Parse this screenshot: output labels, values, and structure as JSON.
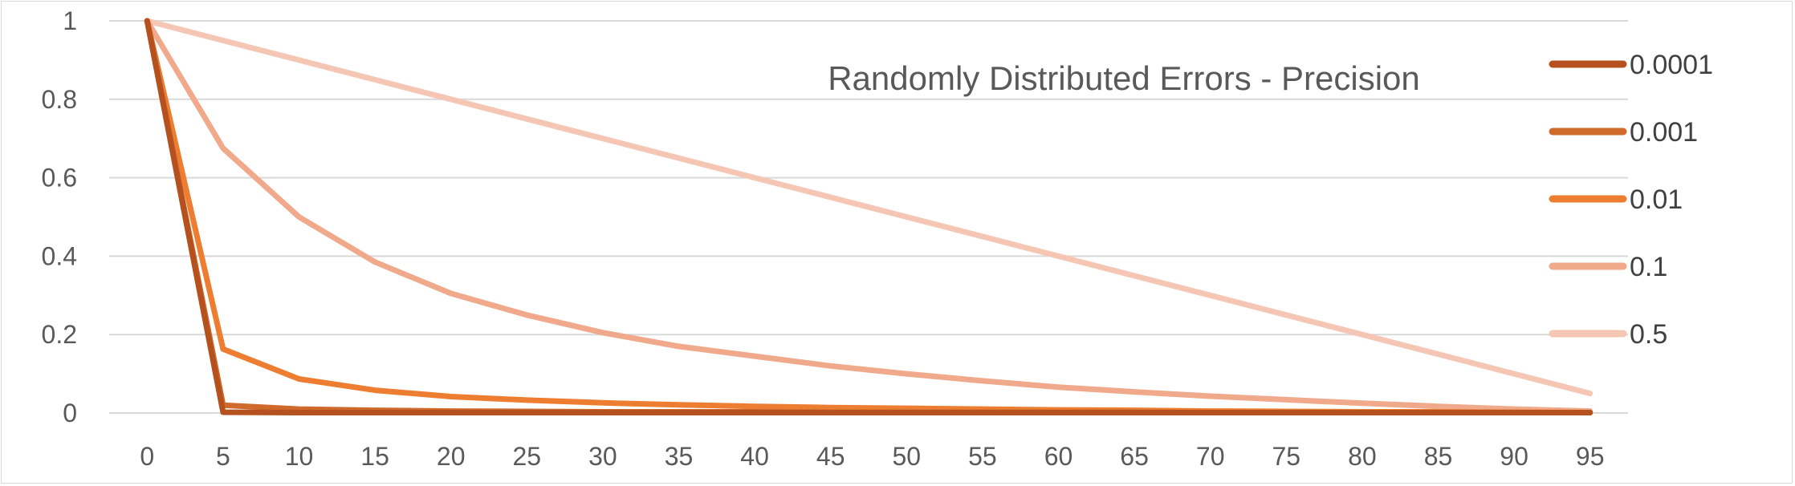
{
  "chart_data": {
    "type": "line",
    "title": "Randomly Distributed Errors - Precision",
    "xlabel": "",
    "ylabel": "",
    "x": [
      0,
      5,
      10,
      15,
      20,
      25,
      30,
      35,
      40,
      45,
      50,
      55,
      60,
      65,
      70,
      75,
      80,
      85,
      90,
      95
    ],
    "ylim": [
      0,
      1
    ],
    "yticks": [
      "0",
      "0.2",
      "0.4",
      "0.6",
      "0.8",
      "1"
    ],
    "grid": true,
    "legend_position": "right",
    "series": [
      {
        "name": "0.0001",
        "color": "#b5501f",
        "values": [
          1,
          0.002,
          0.001,
          0.001,
          0.001,
          0.001,
          0.001,
          0.001,
          0.001,
          0.001,
          0.001,
          0.001,
          0.001,
          0.001,
          0.001,
          0.001,
          0.001,
          0.001,
          0.001,
          0.001
        ]
      },
      {
        "name": "0.001",
        "color": "#d06a2c",
        "values": [
          1,
          0.02,
          0.01,
          0.007,
          0.005,
          0.004,
          0.003,
          0.003,
          0.003,
          0.002,
          0.002,
          0.002,
          0.002,
          0.002,
          0.001,
          0.001,
          0.001,
          0.001,
          0.001,
          0.001
        ]
      },
      {
        "name": "0.01",
        "color": "#ed7d31",
        "values": [
          1,
          0.163,
          0.087,
          0.058,
          0.042,
          0.033,
          0.026,
          0.021,
          0.017,
          0.014,
          0.012,
          0.01,
          0.008,
          0.007,
          0.005,
          0.004,
          0.003,
          0.003,
          0.002,
          0.001
        ]
      },
      {
        "name": "0.1",
        "color": "#f0a98a",
        "values": [
          1,
          0.675,
          0.5,
          0.385,
          0.305,
          0.25,
          0.205,
          0.17,
          0.145,
          0.12,
          0.1,
          0.082,
          0.066,
          0.054,
          0.043,
          0.034,
          0.025,
          0.017,
          0.01,
          0.005
        ]
      },
      {
        "name": "0.5",
        "color": "#f5c6b3",
        "values": [
          1,
          0.95,
          0.9,
          0.85,
          0.8,
          0.75,
          0.7,
          0.65,
          0.6,
          0.55,
          0.5,
          0.45,
          0.4,
          0.35,
          0.3,
          0.25,
          0.2,
          0.15,
          0.1,
          0.05
        ]
      }
    ]
  }
}
